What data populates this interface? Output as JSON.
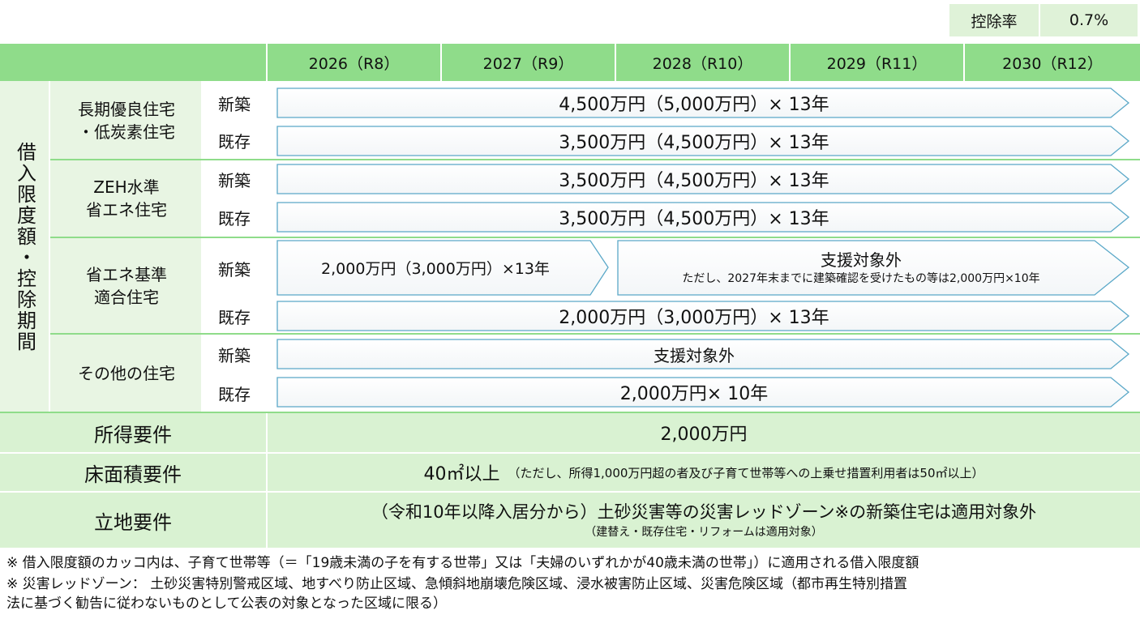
{
  "deduction_rate": {
    "label": "控除率",
    "value": "0.7%"
  },
  "years": [
    "2026（R8）",
    "2027（R9）",
    "2028（R10）",
    "2029（R11）",
    "2030（R12）"
  ],
  "row_group_label": "借入限度額・控除期間",
  "categories": [
    {
      "label": "長期優良住宅\n・低炭素住宅",
      "rows": [
        {
          "kind": "新築",
          "text": "4,500万円（5,000万円）× 13年"
        },
        {
          "kind": "既存",
          "text": "3,500万円（4,500万円）× 13年"
        }
      ]
    },
    {
      "label": "ZEH水準\n省エネ住宅",
      "rows": [
        {
          "kind": "新築",
          "text": "3,500万円（4,500万円）× 13年"
        },
        {
          "kind": "既存",
          "text": "3,500万円（4,500万円）× 13年"
        }
      ]
    },
    {
      "label": "省エネ基準\n適合住宅",
      "rows": [
        {
          "kind": "新築",
          "text_first": "2,000万円（3,000万円）×13年",
          "text_second": "支援対象外",
          "text_second_sub": "ただし、2027年末までに建築確認を受けたもの等は2,000万円×10年"
        },
        {
          "kind": "既存",
          "text": "2,000万円（3,000万円）× 13年"
        }
      ]
    },
    {
      "label": "その他の住宅",
      "rows": [
        {
          "kind": "新築",
          "text": "支援対象外"
        },
        {
          "kind": "既存",
          "text": "2,000万円× 10年"
        }
      ]
    }
  ],
  "requirements": {
    "income": {
      "label": "所得要件",
      "value": "2,000万円"
    },
    "floor": {
      "label": "床面積要件",
      "value": "40㎡以上",
      "note": "（ただし、所得1,000万円超の者及び子育て世帯等への上乗せ措置利用者は50㎡以上）"
    },
    "location": {
      "label": "立地要件",
      "value": "（令和10年以降入居分から）土砂災害等の災害レッドゾーン※の新築住宅は適用対象外",
      "note": "（建替え・既存住宅・リフォームは適用対象）"
    }
  },
  "footnotes": [
    "※ 借入限度額のカッコ内は、子育て世帯等（＝「19歳未満の子を有する世帯」又は「夫婦のいずれかが40歳未満の世帯」）に適用される借入限度額",
    "※ 災害レッドゾーン： 土砂災害特別警戒区域、地すべり防止区域、急傾斜地崩壊危険区域、浸水被害防止区域、災害危険区域（都市再生特別措置",
    "法に基づく勧告に従わないものとして公表の対象となった区域に限る）"
  ]
}
